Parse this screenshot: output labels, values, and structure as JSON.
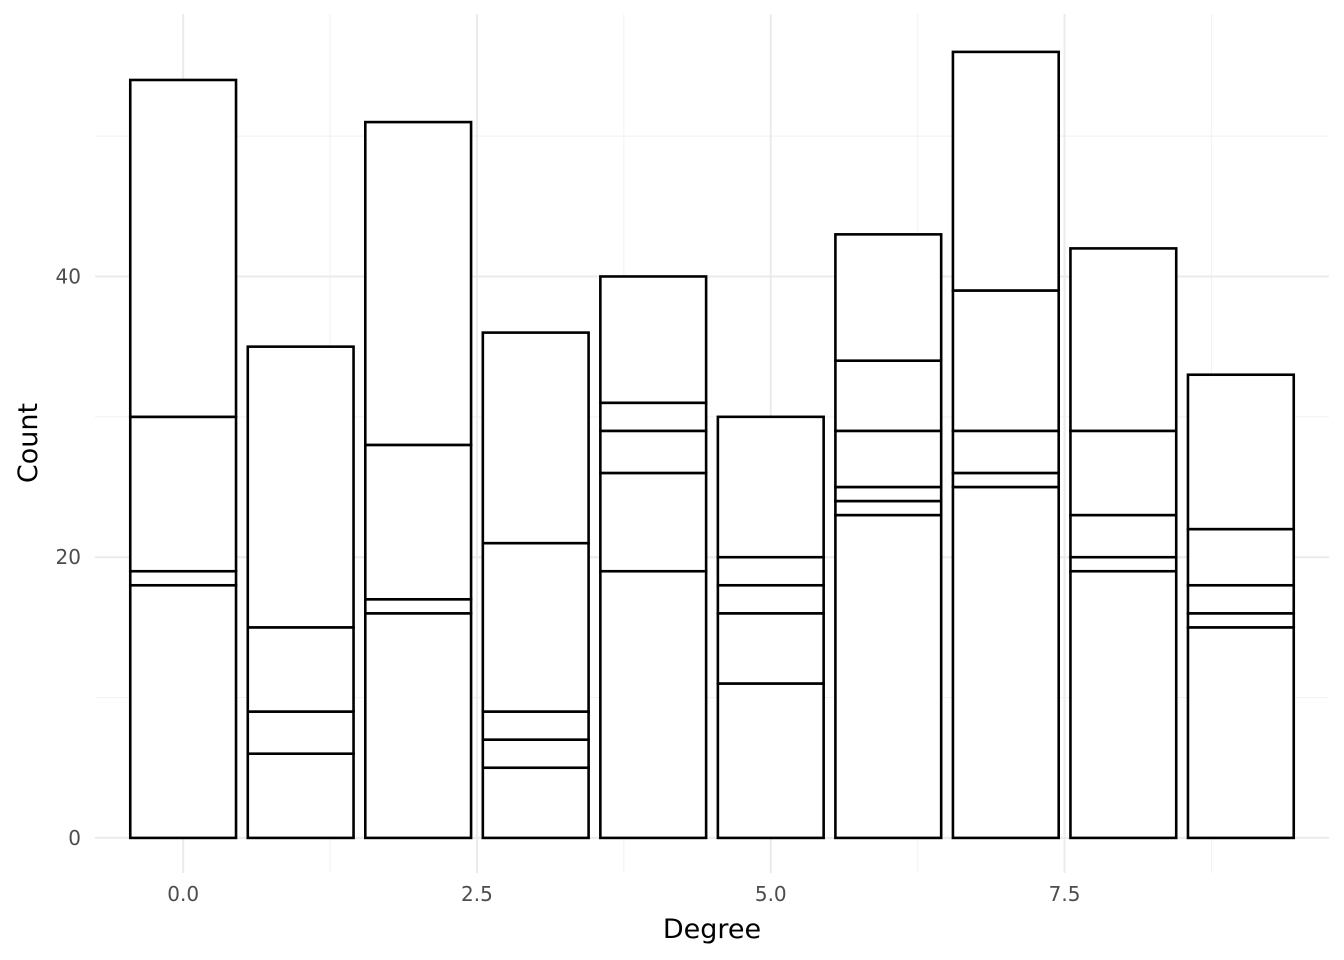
{
  "chart_data": {
    "type": "bar",
    "stacked": true,
    "title": "",
    "xlabel": "Degree",
    "ylabel": "Count",
    "x": [
      0,
      1,
      2,
      3,
      4,
      5,
      6,
      7,
      8,
      9
    ],
    "segment_boundaries": [
      [
        18,
        19,
        30,
        54
      ],
      [
        6,
        9,
        15,
        35
      ],
      [
        16,
        17,
        28,
        51
      ],
      [
        5,
        7,
        9,
        21,
        36
      ],
      [
        19,
        26,
        29,
        31,
        40
      ],
      [
        11,
        16,
        18,
        20,
        30
      ],
      [
        23,
        24,
        25,
        29,
        34,
        43
      ],
      [
        25,
        26,
        29,
        39,
        56
      ],
      [
        19,
        20,
        23,
        29,
        42
      ],
      [
        15,
        16,
        18,
        22,
        33
      ]
    ],
    "totals": [
      54,
      35,
      51,
      36,
      40,
      30,
      43,
      56,
      42,
      33
    ],
    "xlim": [
      -0.75,
      9.75
    ],
    "ylim": [
      -2.5,
      58.7
    ],
    "x_ticks": [
      0,
      2.5,
      5,
      7.5
    ],
    "x_tick_labels": [
      "0.0",
      "2.5",
      "5.0",
      "7.5"
    ],
    "y_ticks": [
      0,
      20,
      40
    ],
    "y_tick_labels": [
      "0",
      "20",
      "40"
    ],
    "grid": true,
    "bar_fill": "#ffffff",
    "bar_stroke": "#000000",
    "legend": "none"
  }
}
